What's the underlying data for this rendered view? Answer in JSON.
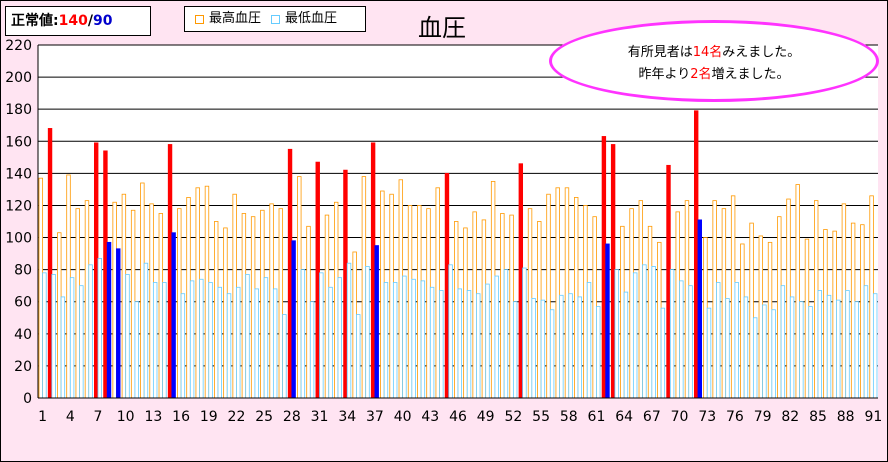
{
  "normal": {
    "label": "正常値:",
    "systolic": "140",
    "separator": "/",
    "diastolic": "90"
  },
  "legend": {
    "systolic_label": "最高血圧",
    "diastolic_label": "最低血圧"
  },
  "callout": {
    "line1_before": "有所見者は",
    "line1_count": "14名",
    "line1_after": "みえました。",
    "line2_before": "昨年より",
    "line2_count": "2名",
    "line2_after": "増えました。"
  },
  "colors": {
    "background": "#ffe4f2",
    "systolic_normal": "#ff9900",
    "systolic_abnormal": "#ff0000",
    "diastolic_normal": "#66ccff",
    "diastolic_abnormal": "#0000ff",
    "callout_border": "#ff33ff"
  },
  "chart_data": {
    "type": "bar",
    "title": "血圧",
    "ylim": [
      0,
      220
    ],
    "yticks": [
      0,
      20,
      40,
      60,
      80,
      100,
      120,
      140,
      160,
      180,
      200,
      220
    ],
    "xtick_labels": [
      "1",
      "4",
      "7",
      "10",
      "13",
      "16",
      "19",
      "22",
      "25",
      "28",
      "31",
      "34",
      "37",
      "40",
      "43",
      "46",
      "49",
      "52",
      "55",
      "58",
      "61",
      "64",
      "67",
      "70",
      "73",
      "76",
      "79",
      "82",
      "85",
      "88",
      "91"
    ],
    "categories": [
      1,
      2,
      3,
      4,
      5,
      6,
      7,
      8,
      9,
      10,
      11,
      12,
      13,
      14,
      15,
      16,
      17,
      18,
      19,
      20,
      21,
      22,
      23,
      24,
      25,
      26,
      27,
      28,
      29,
      30,
      31,
      32,
      33,
      34,
      35,
      36,
      37,
      38,
      39,
      40,
      41,
      42,
      43,
      44,
      45,
      46,
      47,
      48,
      49,
      50,
      51,
      52,
      53,
      54,
      55,
      56,
      57,
      58,
      59,
      60,
      61,
      62,
      63,
      64,
      65,
      66,
      67,
      68,
      69,
      70,
      71,
      72,
      73,
      74,
      75,
      76,
      77,
      78,
      79,
      80,
      81,
      82,
      83,
      84,
      85,
      86,
      87,
      88,
      89,
      90,
      91
    ],
    "series": [
      {
        "name": "最高血圧",
        "values": [
          137,
          168,
          103,
          139,
          118,
          123,
          159,
          154,
          122,
          127,
          117,
          134,
          121,
          115,
          158,
          118,
          125,
          131,
          132,
          110,
          106,
          127,
          115,
          113,
          117,
          121,
          118,
          155,
          138,
          107,
          147,
          114,
          122,
          142,
          91,
          138,
          159,
          129,
          127,
          136,
          120,
          120,
          118,
          131,
          140,
          110,
          106,
          116,
          111,
          135,
          115,
          114,
          146,
          118,
          110,
          127,
          131,
          131,
          125,
          120,
          113,
          163,
          158,
          107,
          118,
          123,
          107,
          97,
          145,
          116,
          123,
          179,
          100,
          123,
          118,
          126,
          96,
          109,
          101,
          97,
          113,
          124,
          133,
          99,
          123,
          105,
          104,
          121,
          109,
          108,
          126
        ]
      },
      {
        "name": "最低血圧",
        "values": [
          78,
          77,
          63,
          75,
          70,
          83,
          87,
          97,
          93,
          77,
          60,
          84,
          72,
          72,
          103,
          65,
          73,
          74,
          72,
          69,
          65,
          69,
          77,
          68,
          75,
          68,
          52,
          98,
          80,
          60,
          78,
          69,
          75,
          84,
          52,
          82,
          95,
          72,
          72,
          76,
          74,
          73,
          69,
          67,
          83,
          68,
          67,
          65,
          71,
          76,
          80,
          60,
          81,
          62,
          61,
          55,
          64,
          65,
          63,
          72,
          57,
          96,
          80,
          66,
          78,
          83,
          82,
          56,
          80,
          73,
          70,
          111,
          56,
          72,
          62,
          72,
          63,
          50,
          58,
          55,
          70,
          63,
          60,
          57,
          67,
          64,
          61,
          67,
          60,
          70,
          65
        ]
      }
    ]
  }
}
